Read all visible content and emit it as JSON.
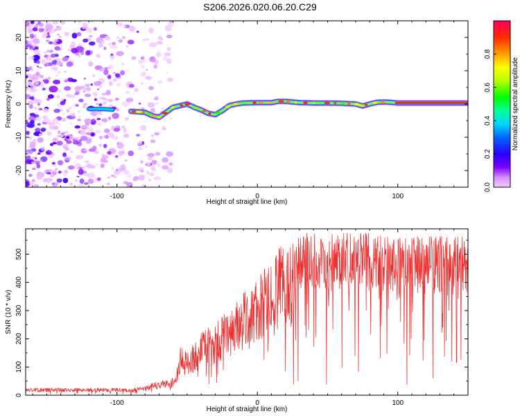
{
  "title": "S206.2026.020.06.20.C29",
  "chart_data": [
    {
      "type": "heatmap",
      "xlabel": "Height of straight line (km)",
      "ylabel": "Frequency (Hz)",
      "xlim": [
        -165,
        150
      ],
      "ylim": [
        -25,
        25
      ],
      "xticks": [
        -100,
        0,
        100
      ],
      "yticks": [
        -20,
        -10,
        0,
        10,
        20
      ],
      "colorbar": {
        "label": "Normalized spectral amplitude",
        "range": [
          0,
          1
        ],
        "ticks": [
          "0.0",
          "0.2",
          "0.4",
          "0.6",
          "0.8"
        ]
      },
      "ridge": {
        "x": [
          -120,
          -110,
          -100,
          -90,
          -80,
          -75,
          -70,
          -65,
          -60,
          -55,
          -50,
          -45,
          -40,
          -35,
          -30,
          -25,
          -20,
          -15,
          -10,
          0,
          10,
          15,
          20,
          30,
          40,
          50,
          60,
          70,
          75,
          80,
          85,
          90,
          95,
          100,
          110,
          120,
          130,
          140,
          150
        ],
        "y": [
          -1.5,
          -1.5,
          -1.8,
          -2.2,
          -2.5,
          -3.5,
          -4.0,
          -2.5,
          -1.0,
          -0.5,
          0.0,
          -1.0,
          -1.8,
          -2.8,
          -3.2,
          -2.0,
          -0.5,
          0.0,
          0.3,
          0.4,
          0.4,
          0.8,
          0.8,
          0.4,
          0.3,
          0.3,
          0.2,
          0.0,
          -0.6,
          0.0,
          0.5,
          0.6,
          0.5,
          0.3,
          0.3,
          0.3,
          0.3,
          0.3,
          0.3
        ]
      },
      "noise_region_x": [
        -165,
        -70
      ]
    },
    {
      "type": "line",
      "xlabel": "Height of straight line (km)",
      "ylabel": "SNR (10 * v/v)",
      "xlim": [
        -165,
        150
      ],
      "ylim": [
        0,
        590
      ],
      "xticks": [
        -100,
        0,
        100
      ],
      "yticks": [
        0,
        100,
        200,
        300,
        400,
        500
      ],
      "series": [
        {
          "name": "SNR",
          "color": "#f03030",
          "envelope_x": [
            -165,
            -100,
            -90,
            -80,
            -70,
            -62,
            -58,
            -55,
            -50,
            -40,
            -30,
            -20,
            -10,
            0,
            10,
            15,
            20,
            30,
            40,
            60,
            80,
            100,
            120,
            140,
            150
          ],
          "envelope_y": [
            20,
            20,
            18,
            25,
            40,
            45,
            55,
            130,
            120,
            170,
            200,
            240,
            280,
            320,
            370,
            400,
            420,
            450,
            450,
            450,
            450,
            440,
            440,
            440,
            440
          ]
        }
      ]
    }
  ]
}
